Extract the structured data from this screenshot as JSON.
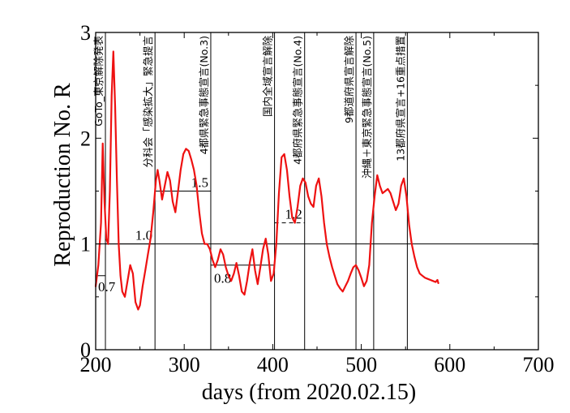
{
  "chart_data": {
    "type": "line",
    "xlabel": "days (from 2020.02.15)",
    "ylabel": "Reproduction No. R",
    "xlim": [
      200,
      700
    ],
    "ylim": [
      0,
      3
    ],
    "x_ticks": [
      "200",
      "300",
      "400",
      "500",
      "600",
      "700"
    ],
    "y_ticks": [
      "0",
      "1",
      "2",
      "3"
    ],
    "line_color": "#ee1111",
    "reference_line": {
      "y": 1.0
    },
    "series": [
      {
        "x": [
          200,
          203,
          206,
          208,
          210,
          212,
          214,
          216,
          218,
          220,
          222,
          224,
          226,
          228,
          230,
          233,
          236,
          239,
          242,
          245,
          248,
          250,
          253,
          256,
          259,
          262,
          265,
          268,
          270,
          272,
          275,
          278,
          281,
          284,
          287,
          290,
          293,
          296,
          299,
          302,
          305,
          308,
          311,
          314,
          317,
          320,
          323,
          326,
          329,
          332,
          335,
          338,
          341,
          344,
          347,
          350,
          353,
          356,
          359,
          362,
          365,
          368,
          371,
          374,
          377,
          380,
          383,
          386,
          389,
          392,
          395,
          398,
          401,
          404,
          407,
          410,
          413,
          416,
          419,
          422,
          425,
          428,
          431,
          434,
          437,
          440,
          443,
          446,
          449,
          452,
          455,
          458,
          461,
          464,
          467,
          470,
          473,
          476,
          479,
          482,
          485,
          488,
          491,
          494,
          497,
          500,
          503,
          506,
          509,
          512,
          515,
          518,
          521,
          524,
          527,
          530,
          533,
          536,
          539,
          542,
          545,
          548,
          551,
          554,
          557,
          560,
          563,
          566,
          569,
          572,
          575,
          578,
          581,
          584,
          586,
          587
        ],
        "y": [
          0.6,
          0.8,
          1.2,
          1.95,
          1.4,
          1.05,
          1.0,
          1.5,
          2.4,
          2.82,
          2.3,
          1.6,
          1.0,
          0.7,
          0.55,
          0.5,
          0.65,
          0.8,
          0.72,
          0.45,
          0.38,
          0.42,
          0.6,
          0.75,
          0.9,
          1.05,
          1.3,
          1.6,
          1.7,
          1.6,
          1.42,
          1.55,
          1.68,
          1.6,
          1.4,
          1.3,
          1.5,
          1.7,
          1.85,
          1.9,
          1.88,
          1.8,
          1.7,
          1.55,
          1.3,
          1.1,
          1.0,
          1.0,
          0.95,
          0.85,
          0.78,
          0.85,
          0.95,
          0.9,
          0.78,
          0.7,
          0.65,
          0.72,
          0.82,
          0.7,
          0.55,
          0.52,
          0.65,
          0.82,
          0.95,
          0.75,
          0.62,
          0.78,
          0.95,
          1.05,
          0.9,
          0.65,
          0.72,
          1.0,
          1.48,
          1.82,
          1.85,
          1.7,
          1.45,
          1.25,
          1.2,
          1.35,
          1.55,
          1.62,
          1.58,
          1.45,
          1.38,
          1.35,
          1.55,
          1.62,
          1.45,
          1.2,
          1.0,
          0.88,
          0.78,
          0.7,
          0.62,
          0.58,
          0.55,
          0.6,
          0.65,
          0.72,
          0.78,
          0.8,
          0.75,
          0.68,
          0.6,
          0.65,
          0.8,
          1.2,
          1.45,
          1.65,
          1.55,
          1.48,
          1.5,
          1.52,
          1.48,
          1.4,
          1.32,
          1.38,
          1.55,
          1.62,
          1.45,
          1.18,
          1.0,
          0.88,
          0.78,
          0.72,
          0.7,
          0.68,
          0.67,
          0.66,
          0.65,
          0.64,
          0.66,
          0.63
        ]
      }
    ],
    "vertical_events": [
      {
        "x": 211,
        "label": "GoTo_東京解除発表"
      },
      {
        "x": 267,
        "label": "分科会「感染拡大」緊急提言"
      },
      {
        "x": 330,
        "label": "4都県緊急事態宣言(No.3)"
      },
      {
        "x": 402,
        "label": "国内全域宣言解除"
      },
      {
        "x": 436,
        "label": "4都府県緊急事態宣言(No.4)"
      },
      {
        "x": 494,
        "label": "9都道府県宣言解除"
      },
      {
        "x": 514,
        "label": "沖縄＋東京緊急事態宣言(No.5)"
      },
      {
        "x": 552,
        "label": "13都府県宣言+16重点措置"
      }
    ],
    "period_levels": [
      {
        "x_start": 200,
        "x_end": 211,
        "value": 0.7,
        "label": "0.7",
        "dashed": false
      },
      {
        "x_start": 211,
        "x_end": 267,
        "value": 1.0,
        "label": "1.0",
        "dashed": false
      },
      {
        "x_start": 267,
        "x_end": 330,
        "value": 1.5,
        "label": "1.5",
        "dashed": false
      },
      {
        "x_start": 330,
        "x_end": 402,
        "value": 0.8,
        "label": "0.8",
        "dashed": false
      },
      {
        "x_start": 402,
        "x_end": 436,
        "value": 1.2,
        "label": "1.2",
        "dashed": true
      }
    ]
  }
}
